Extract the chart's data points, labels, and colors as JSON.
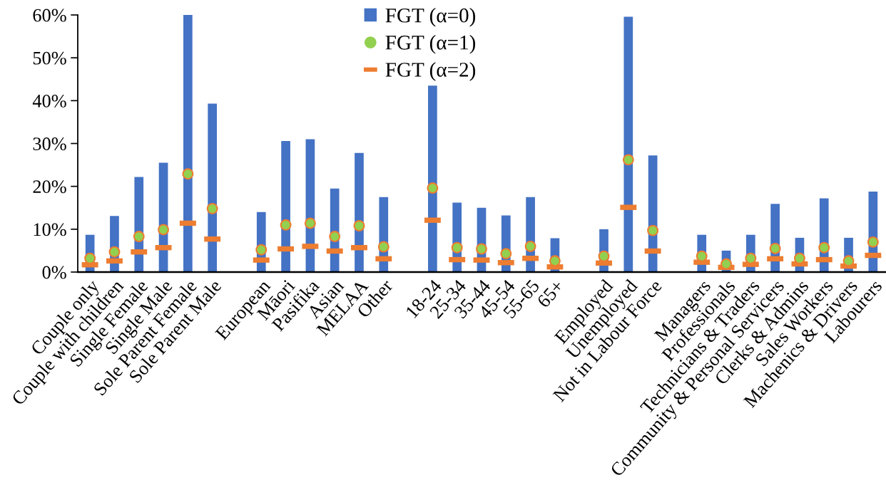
{
  "chart_data": {
    "type": "bar",
    "categories": [
      "Couple only",
      "Couple with children",
      "Single Female",
      "Single Male",
      "Sole Parent Female",
      "Sole Parent Male",
      null,
      "European",
      "Māori",
      "Pasifika",
      "Asian",
      "MELAA",
      "Other",
      null,
      "18-24",
      "25-34",
      "35-44",
      "45-54",
      "55-65",
      "65+",
      null,
      "Employed",
      "Unemployed",
      "Not in Labour Force",
      null,
      "Managers",
      "Professionals",
      "Technicians & Traders",
      "Community & Personal Servicers",
      "Clerks & Admins",
      "Sales Workers",
      "Machenics & Drivers",
      "Labourers"
    ],
    "series": [
      {
        "name": "FGT (α=0)",
        "color": "#4472c4",
        "values": [
          8.7,
          13.1,
          22.2,
          25.5,
          60.0,
          39.3,
          null,
          14.0,
          30.6,
          31.0,
          19.5,
          27.8,
          17.5,
          null,
          43.5,
          16.2,
          15.0,
          13.2,
          17.5,
          7.9,
          null,
          10.0,
          59.6,
          27.2,
          null,
          8.7,
          5.0,
          8.7,
          15.9,
          8.0,
          17.2,
          8.0,
          18.8
        ]
      },
      {
        "name": "FGT (α=1)",
        "type": "scatter",
        "marker": "circle",
        "color": "#92d050",
        "values": [
          3.2,
          4.7,
          8.3,
          9.9,
          22.9,
          14.8,
          null,
          5.2,
          11.0,
          11.4,
          8.3,
          10.8,
          5.9,
          null,
          19.6,
          5.7,
          5.4,
          4.3,
          6.0,
          2.6,
          null,
          3.7,
          26.2,
          9.7,
          null,
          3.7,
          1.9,
          3.2,
          5.5,
          3.2,
          5.7,
          2.6,
          7.0
        ]
      },
      {
        "name": "FGT (α=2)",
        "type": "scatter",
        "color": "#ed7d31",
        "values": [
          1.7,
          2.6,
          4.7,
          5.7,
          11.4,
          7.7,
          null,
          2.8,
          5.4,
          6.0,
          4.9,
          5.7,
          3.1,
          null,
          12.1,
          2.9,
          2.8,
          2.2,
          3.2,
          1.2,
          null,
          2.1,
          15.1,
          4.9,
          null,
          2.3,
          1.1,
          1.8,
          3.1,
          1.9,
          2.9,
          1.4,
          3.9
        ]
      }
    ],
    "ylim": [
      0,
      60
    ],
    "yticks": [
      {
        "value": 0,
        "label": "0%"
      },
      {
        "value": 10,
        "label": "10%"
      },
      {
        "value": 20,
        "label": "20%"
      },
      {
        "value": 30,
        "label": "30%"
      },
      {
        "value": 40,
        "label": "40%"
      },
      {
        "value": 50,
        "label": "50%"
      },
      {
        "value": 60,
        "label": "60%"
      }
    ],
    "legend": "top"
  }
}
